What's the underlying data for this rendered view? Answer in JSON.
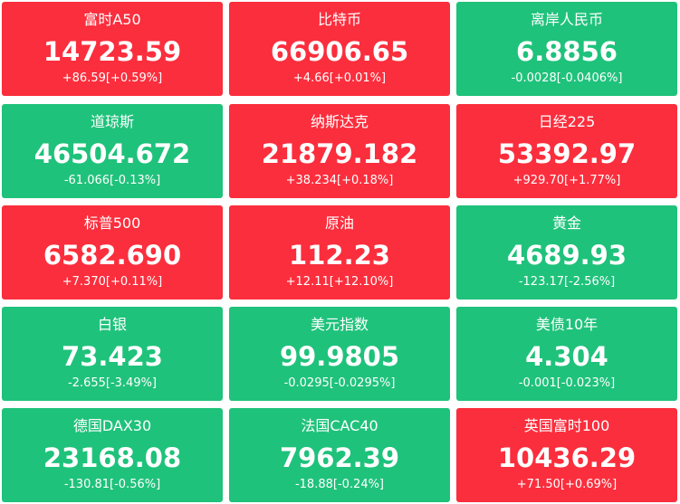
{
  "tiles": [
    {
      "name": "富时A50",
      "price": "14723.59",
      "change": "+86.59[+0.59%]",
      "color": "#fb2e3d"
    },
    {
      "name": "比特币",
      "price": "66906.65",
      "change": "+4.66[+0.01%]",
      "color": "#fb2e3d"
    },
    {
      "name": "离岸人民币",
      "price": "6.8856",
      "change": "-0.0028[-0.0406%]",
      "color": "#1fc27b"
    },
    {
      "name": "道琼斯",
      "price": "46504.672",
      "change": "-61.066[-0.13%]",
      "color": "#1fc27b"
    },
    {
      "name": "纳斯达克",
      "price": "21879.182",
      "change": "+38.234[+0.18%]",
      "color": "#fb2e3d"
    },
    {
      "name": "日经225",
      "price": "53392.97",
      "change": "+929.70[+1.77%]",
      "color": "#fb2e3d"
    },
    {
      "name": "标普500",
      "price": "6582.690",
      "change": "+7.370[+0.11%]",
      "color": "#fb2e3d"
    },
    {
      "name": "原油",
      "price": "112.23",
      "change": "+12.11[+12.10%]",
      "color": "#fb2e3d"
    },
    {
      "name": "黄金",
      "price": "4689.93",
      "change": "-123.17[-2.56%]",
      "color": "#1fc27b"
    },
    {
      "name": "白银",
      "price": "73.423",
      "change": "-2.655[-3.49%]",
      "color": "#1fc27b"
    },
    {
      "name": "美元指数",
      "price": "99.9805",
      "change": "-0.0295[-0.0295%]",
      "color": "#1fc27b"
    },
    {
      "name": "美债10年",
      "price": "4.304",
      "change": "-0.001[-0.023%]",
      "color": "#1fc27b"
    },
    {
      "name": "德国DAX30",
      "price": "23168.08",
      "change": "-130.81[-0.56%]",
      "color": "#1fc27b"
    },
    {
      "name": "法国CAC40",
      "price": "7962.39",
      "change": "-18.88[-0.24%]",
      "color": "#1fc27b"
    },
    {
      "name": "英国富时100",
      "price": "10436.29",
      "change": "+71.50[+0.69%]",
      "color": "#fb2e3d"
    }
  ]
}
